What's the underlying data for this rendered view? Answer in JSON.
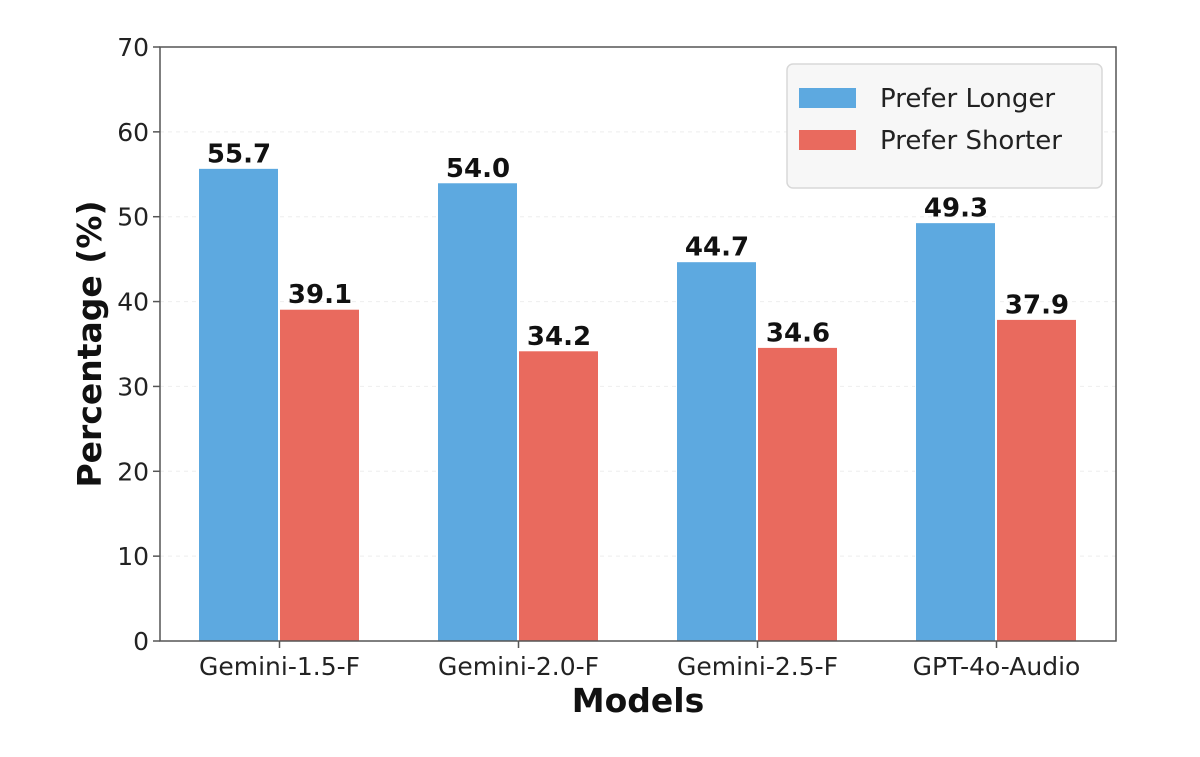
{
  "chart_data": {
    "type": "bar",
    "categories": [
      "Gemini-1.5-F",
      "Gemini-2.0-F",
      "Gemini-2.5-F",
      "GPT-4o-Audio"
    ],
    "series": [
      {
        "name": "Prefer Longer",
        "values": [
          55.7,
          54.0,
          44.7,
          49.3
        ],
        "color": "#5DA9E0"
      },
      {
        "name": "Prefer Shorter",
        "values": [
          39.1,
          34.2,
          34.6,
          37.9
        ],
        "color": "#E96A5E"
      }
    ],
    "value_labels": [
      [
        "55.7",
        "54.0",
        "44.7",
        "49.3"
      ],
      [
        "39.1",
        "34.2",
        "34.6",
        "37.9"
      ]
    ],
    "title": "",
    "xlabel": "Models",
    "ylabel": "Percentage (%)",
    "ylim": [
      0,
      70
    ],
    "yticks": [
      "0",
      "10",
      "20",
      "30",
      "40",
      "50",
      "60",
      "70"
    ],
    "grid": true,
    "legend_position": "top-right"
  }
}
